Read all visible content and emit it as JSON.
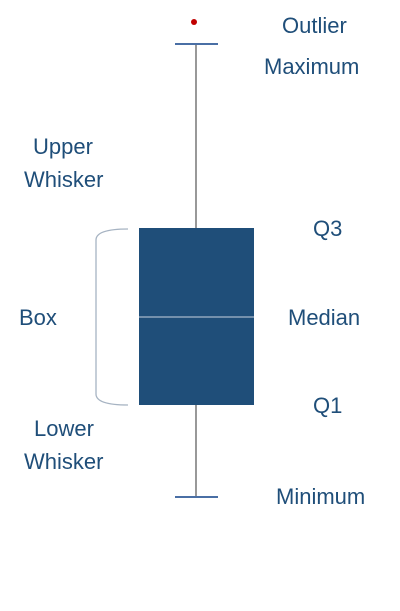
{
  "colors": {
    "box_fill": "#1f4e79",
    "whisker": "#555555",
    "cap": "#4a6fa5",
    "median_line": "#c9d3df",
    "outlier": "#c00000",
    "bracket": "#a6b3c2",
    "label": "#1f4e79"
  },
  "labels": {
    "outlier": "Outlier",
    "maximum": "Maximum",
    "upper_whisker_line1": "Upper",
    "upper_whisker_line2": "Whisker",
    "q3": "Q3",
    "box": "Box",
    "median": "Median",
    "q1": "Q1",
    "lower_whisker_line1": "Lower",
    "lower_whisker_line2": "Whisker",
    "minimum": "Minimum"
  }
}
